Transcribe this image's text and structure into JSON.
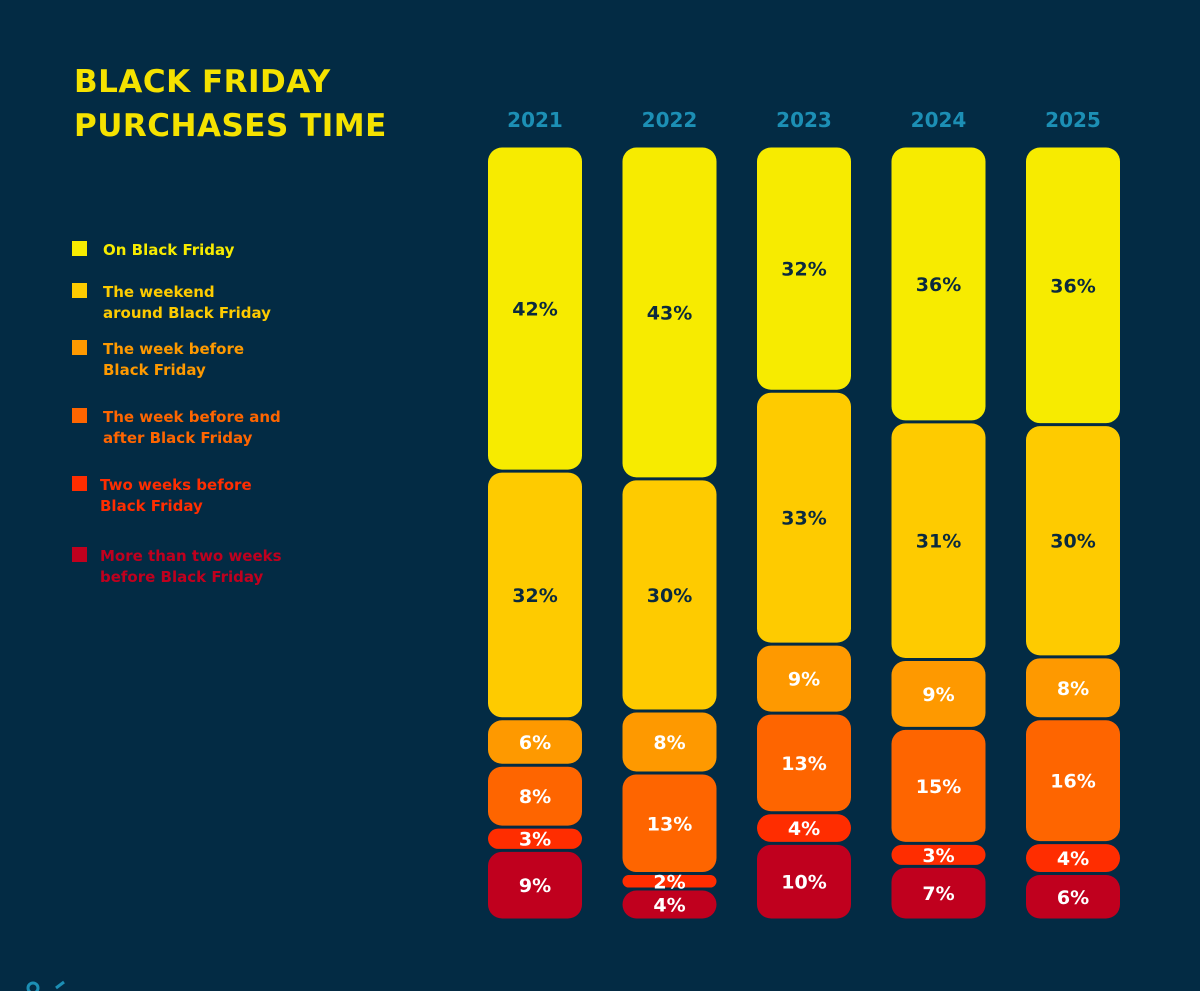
{
  "title": "BLACK FRIDAY\nPURCHASES TIME",
  "colors": {
    "background": "#032b44",
    "title": "#f5e200",
    "year_label": "#1c8fb5",
    "dark_value_text": "#0b2a3e",
    "light_value_text": "#ffffff"
  },
  "legend": [
    {
      "label": "On Black Friday",
      "color": "#f7eb00"
    },
    {
      "label": "The weekend\naround Black Friday",
      "color": "#fecb00"
    },
    {
      "label": "The week before\nBlack Friday",
      "color": "#fe9900"
    },
    {
      "label": "The week before and\nafter Black Friday",
      "color": "#fe6500"
    },
    {
      "label": "Two weeks before\nBlack Friday",
      "color": "#ff2d00"
    },
    {
      "label": "More than two weeks\nbefore Black Friday",
      "color": "#c0001e"
    }
  ],
  "chart_data": {
    "type": "bar",
    "stacked": true,
    "orientation": "vertical",
    "categories": [
      "2021",
      "2022",
      "2023",
      "2024",
      "2025"
    ],
    "unit": "%",
    "series": [
      {
        "name": "On Black Friday",
        "color": "#f7eb00",
        "values": [
          42,
          43,
          32,
          36,
          36
        ]
      },
      {
        "name": "The weekend around Black Friday",
        "color": "#fecb00",
        "values": [
          32,
          30,
          33,
          31,
          30
        ]
      },
      {
        "name": "The week before Black Friday",
        "color": "#fe9900",
        "values": [
          6,
          8,
          9,
          9,
          8
        ]
      },
      {
        "name": "The week before and after Black Friday",
        "color": "#fe6500",
        "values": [
          8,
          13,
          13,
          15,
          16
        ]
      },
      {
        "name": "Two weeks before Black Friday",
        "color": "#ff2d00",
        "values": [
          3,
          2,
          4,
          3,
          4
        ]
      },
      {
        "name": "More than two weeks before Black Friday",
        "color": "#c0001e",
        "values": [
          9,
          4,
          10,
          7,
          6
        ]
      }
    ],
    "legend_position": "left"
  }
}
